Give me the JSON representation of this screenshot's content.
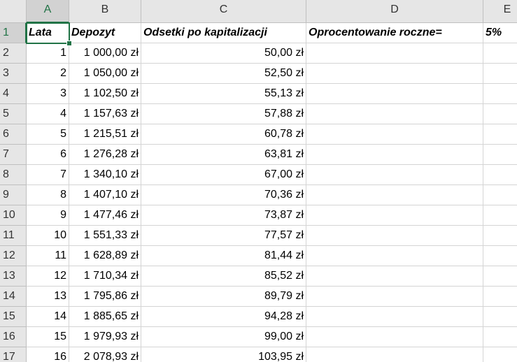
{
  "columns": [
    "A",
    "B",
    "C",
    "D",
    "E"
  ],
  "row_numbers": [
    "1",
    "2",
    "3",
    "4",
    "5",
    "6",
    "7",
    "8",
    "9",
    "10",
    "11",
    "12",
    "13",
    "14",
    "15",
    "16",
    "17"
  ],
  "rows": [
    {
      "A": "Lata",
      "B": "Depozyt",
      "C": "Odsetki po kapitalizacji",
      "D": "Oprocentowanie roczne=",
      "E": "5%"
    },
    {
      "A": "1",
      "B": "1 000,00 zł",
      "C": "50,00 zł"
    },
    {
      "A": "2",
      "B": "1 050,00 zł",
      "C": "52,50 zł"
    },
    {
      "A": "3",
      "B": "1 102,50 zł",
      "C": "55,13 zł"
    },
    {
      "A": "4",
      "B": "1 157,63 zł",
      "C": "57,88 zł"
    },
    {
      "A": "5",
      "B": "1 215,51 zł",
      "C": "60,78 zł"
    },
    {
      "A": "6",
      "B": "1 276,28 zł",
      "C": "63,81 zł"
    },
    {
      "A": "7",
      "B": "1 340,10 zł",
      "C": "67,00 zł"
    },
    {
      "A": "8",
      "B": "1 407,10 zł",
      "C": "70,36 zł"
    },
    {
      "A": "9",
      "B": "1 477,46 zł",
      "C": "73,87 zł"
    },
    {
      "A": "10",
      "B": "1 551,33 zł",
      "C": "77,57 zł"
    },
    {
      "A": "11",
      "B": "1 628,89 zł",
      "C": "81,44 zł"
    },
    {
      "A": "12",
      "B": "1 710,34 zł",
      "C": "85,52 zł"
    },
    {
      "A": "13",
      "B": "1 795,86 zł",
      "C": "89,79 zł"
    },
    {
      "A": "14",
      "B": "1 885,65 zł",
      "C": "94,28 zł"
    },
    {
      "A": "15",
      "B": "1 979,93 zł",
      "C": "99,00 zł"
    },
    {
      "A": "16",
      "B": "2 078,93 zł",
      "C": "103,95 zł"
    }
  ]
}
